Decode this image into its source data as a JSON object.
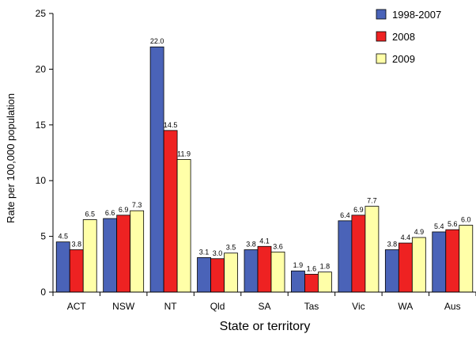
{
  "chart_data": {
    "type": "bar",
    "title": "",
    "xlabel": "State or territory",
    "ylabel": "Rate per 100,000 population",
    "categories": [
      "ACT",
      "NSW",
      "NT",
      "Qld",
      "SA",
      "Tas",
      "Vic",
      "WA",
      "Aus"
    ],
    "ylim": [
      0,
      25
    ],
    "yticks": [
      0,
      5,
      10,
      15,
      20,
      25
    ],
    "grid": false,
    "legend_position": "top-right",
    "series": [
      {
        "name": "1998-2007",
        "color": "#4a63b8",
        "values": [
          4.5,
          6.6,
          22.0,
          3.1,
          3.8,
          1.9,
          6.4,
          3.8,
          5.4
        ],
        "labels": [
          "4.5",
          "6.6",
          "22.0",
          "3.1",
          "3.8",
          "1.9",
          "6.4",
          "3.8",
          "5.4"
        ]
      },
      {
        "name": "2008",
        "color": "#ee2222",
        "values": [
          3.8,
          6.9,
          14.5,
          3.0,
          4.1,
          1.6,
          6.9,
          4.4,
          5.6
        ],
        "labels": [
          "3.8",
          "6.9",
          "14.5",
          "3.0",
          "4.1",
          "1.6",
          "6.9",
          "4.4",
          "5.6"
        ]
      },
      {
        "name": "2009",
        "color": "#ffffa8",
        "values": [
          6.5,
          7.3,
          11.9,
          3.5,
          3.6,
          1.8,
          7.7,
          4.9,
          6.0
        ],
        "labels": [
          "6.5",
          "7.3",
          "11.9",
          "3.5",
          "3.6",
          "1.8",
          "7.7",
          "4.9",
          "6.0"
        ]
      }
    ]
  }
}
